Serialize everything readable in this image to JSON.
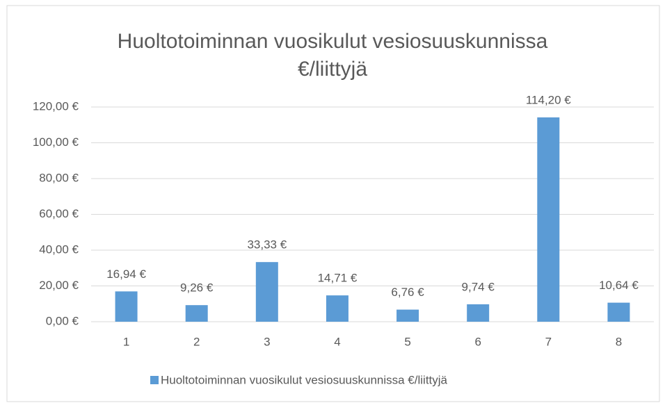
{
  "chart_data": {
    "type": "bar",
    "title": "Huoltotoiminnan vuosikulut vesiosuuskunnissa €/liittyjä",
    "categories": [
      "1",
      "2",
      "3",
      "4",
      "5",
      "6",
      "7",
      "8"
    ],
    "series": [
      {
        "name": "Huoltotoiminnan vuosikulut vesiosuuskunnissa €/liittyjä",
        "color": "#5b9bd5",
        "values": [
          16.94,
          9.26,
          33.33,
          14.71,
          6.76,
          9.74,
          114.2,
          10.64
        ],
        "value_labels": [
          "16,94 €",
          "9,26 €",
          "33,33 €",
          "14,71 €",
          "6,76 €",
          "9,74 €",
          "114,20 €",
          "10,64 €"
        ]
      }
    ],
    "ylim": [
      0,
      120
    ],
    "yticks": [
      {
        "value": 0,
        "label": "0,00 €"
      },
      {
        "value": 20,
        "label": "20,00 €"
      },
      {
        "value": 40,
        "label": "40,00 €"
      },
      {
        "value": 60,
        "label": "60,00 €"
      },
      {
        "value": 80,
        "label": "80,00 €"
      },
      {
        "value": 100,
        "label": "100,00 €"
      },
      {
        "value": 120,
        "label": "120,00 €"
      }
    ],
    "grid": true,
    "legend": "bottom"
  }
}
